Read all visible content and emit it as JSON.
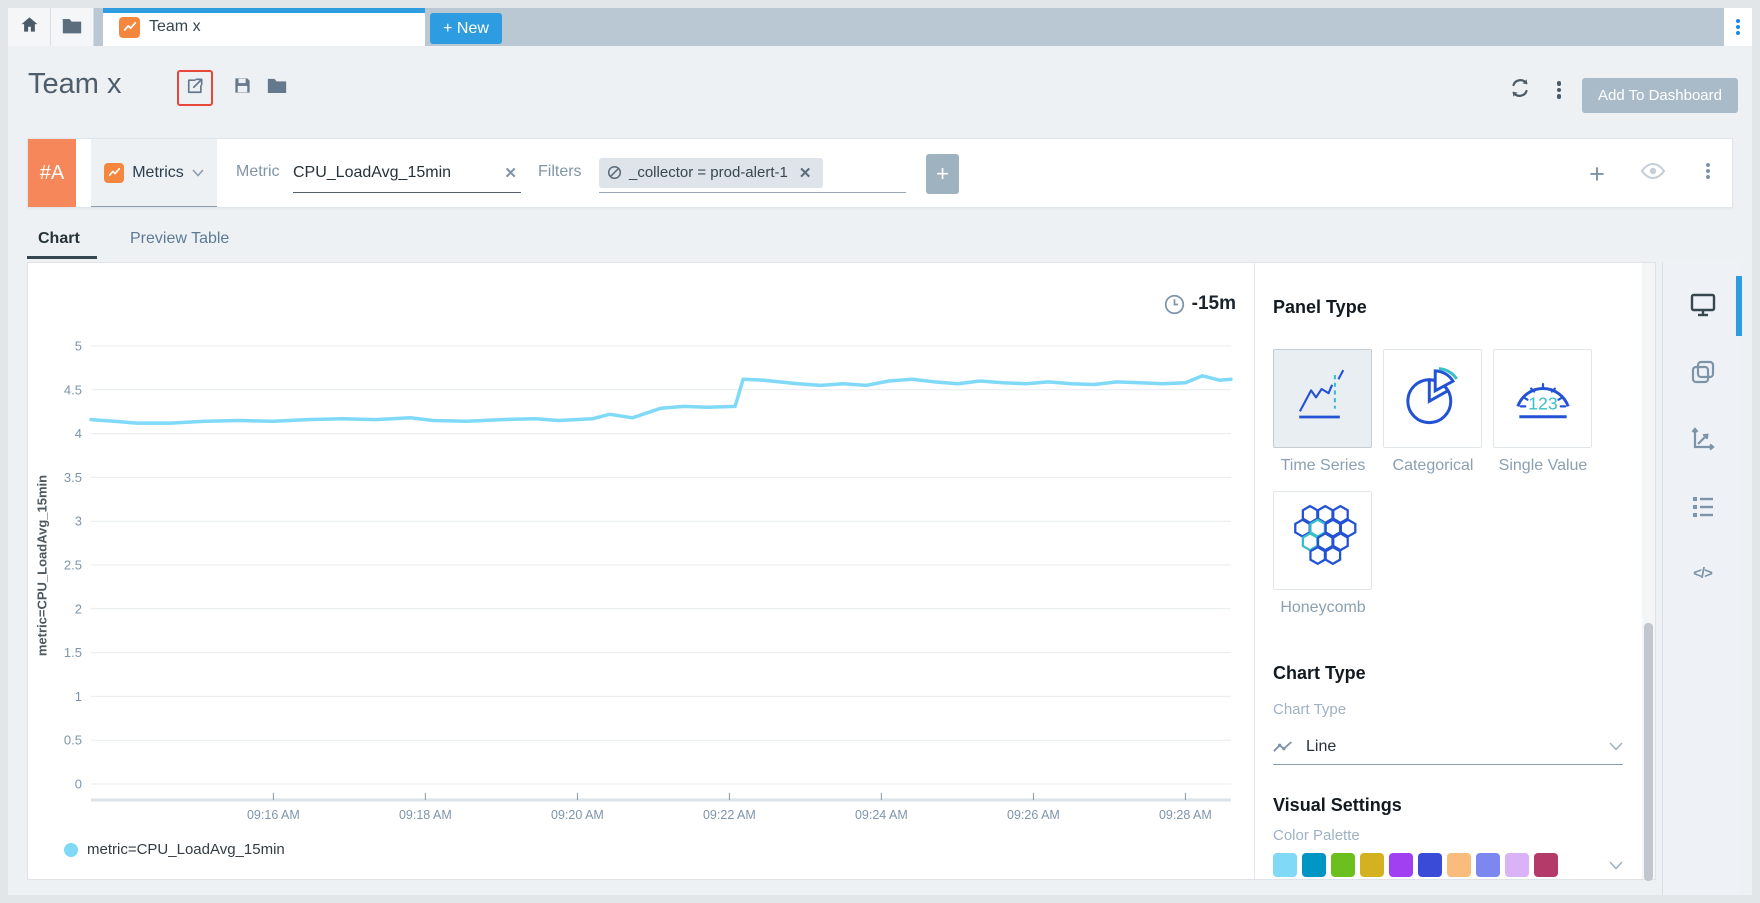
{
  "topbar": {
    "tab_label": "Team x",
    "new_button_label": "+ New"
  },
  "title_row": {
    "title": "Team x",
    "add_to_dashboard_label": "Add To Dashboard"
  },
  "query": {
    "row_badge": "#A",
    "source_selector": "Metrics",
    "metric_label": "Metric",
    "metric_value": "CPU_LoadAvg_15min",
    "filters_label": "Filters",
    "filter_chip": "_collector = prod-alert-1"
  },
  "view_tabs": {
    "chart": "Chart",
    "preview_table": "Preview Table"
  },
  "chart": {
    "time_range": "-15m"
  },
  "chart_data": {
    "type": "line",
    "title": "",
    "xlabel": "",
    "ylabel": "metric=CPU_LoadAvg_15min",
    "ylim": [
      0,
      5
    ],
    "y_ticks": [
      0,
      0.5,
      1,
      1.5,
      2,
      2.5,
      3,
      3.5,
      4,
      4.5,
      5
    ],
    "grid": true,
    "legend_position": "bottom-left",
    "time_range": "-15m",
    "x_ticks": [
      {
        "label": "09:16 AM",
        "f": 0.16
      },
      {
        "label": "09:18 AM",
        "f": 0.2933
      },
      {
        "label": "09:20 AM",
        "f": 0.4267
      },
      {
        "label": "09:22 AM",
        "f": 0.56
      },
      {
        "label": "09:24 AM",
        "f": 0.6933
      },
      {
        "label": "09:26 AM",
        "f": 0.8267
      },
      {
        "label": "09:28 AM",
        "f": 0.96
      }
    ],
    "series": [
      {
        "name": "metric=CPU_LoadAvg_15min",
        "color": "#7fd9f7",
        "points": [
          [
            0.0,
            4.16
          ],
          [
            0.02,
            4.14
          ],
          [
            0.04,
            4.12
          ],
          [
            0.07,
            4.12
          ],
          [
            0.1,
            4.14
          ],
          [
            0.13,
            4.15
          ],
          [
            0.16,
            4.14
          ],
          [
            0.19,
            4.16
          ],
          [
            0.22,
            4.17
          ],
          [
            0.25,
            4.16
          ],
          [
            0.28,
            4.18
          ],
          [
            0.3,
            4.15
          ],
          [
            0.33,
            4.14
          ],
          [
            0.36,
            4.16
          ],
          [
            0.39,
            4.17
          ],
          [
            0.41,
            4.15
          ],
          [
            0.44,
            4.17
          ],
          [
            0.455,
            4.22
          ],
          [
            0.475,
            4.18
          ],
          [
            0.5,
            4.29
          ],
          [
            0.52,
            4.31
          ],
          [
            0.54,
            4.3
          ],
          [
            0.565,
            4.31
          ],
          [
            0.572,
            4.62
          ],
          [
            0.59,
            4.61
          ],
          [
            0.62,
            4.57
          ],
          [
            0.64,
            4.55
          ],
          [
            0.66,
            4.57
          ],
          [
            0.68,
            4.55
          ],
          [
            0.7,
            4.6
          ],
          [
            0.72,
            4.62
          ],
          [
            0.74,
            4.59
          ],
          [
            0.76,
            4.57
          ],
          [
            0.78,
            4.6
          ],
          [
            0.8,
            4.58
          ],
          [
            0.82,
            4.57
          ],
          [
            0.84,
            4.59
          ],
          [
            0.86,
            4.57
          ],
          [
            0.88,
            4.56
          ],
          [
            0.9,
            4.59
          ],
          [
            0.92,
            4.58
          ],
          [
            0.94,
            4.57
          ],
          [
            0.96,
            4.58
          ],
          [
            0.975,
            4.66
          ],
          [
            0.99,
            4.61
          ],
          [
            1.0,
            4.62
          ]
        ]
      }
    ]
  },
  "settings": {
    "panel_type_title": "Panel Type",
    "panel_types": [
      {
        "label": "Time Series",
        "selected": true
      },
      {
        "label": "Categorical",
        "selected": false
      },
      {
        "label": "Single Value",
        "selected": false
      },
      {
        "label": "Honeycomb",
        "selected": false
      }
    ],
    "chart_type_title": "Chart Type",
    "chart_type_label": "Chart Type",
    "chart_type_value": "Line",
    "visual_settings_title": "Visual Settings",
    "color_palette_label": "Color Palette",
    "palette": [
      "#7fd9f7",
      "#0095c2",
      "#6cc01d",
      "#d4b21f",
      "#a040f0",
      "#3a4bd8",
      "#f9bc7c",
      "#7c88f0",
      "#d9b3f5",
      "#b43a6a"
    ]
  },
  "icons": {
    "close_glyph": "✕",
    "plus_glyph": "+",
    "code_glyph": "</>",
    "gauge_digits": "123"
  },
  "colors": {
    "accent_blue": "#2e9ce0",
    "accent_orange": "#f5875a",
    "series_line": "#7fd9f7",
    "icon_blue": "#2353d4",
    "icon_teal": "#39bfc9"
  }
}
